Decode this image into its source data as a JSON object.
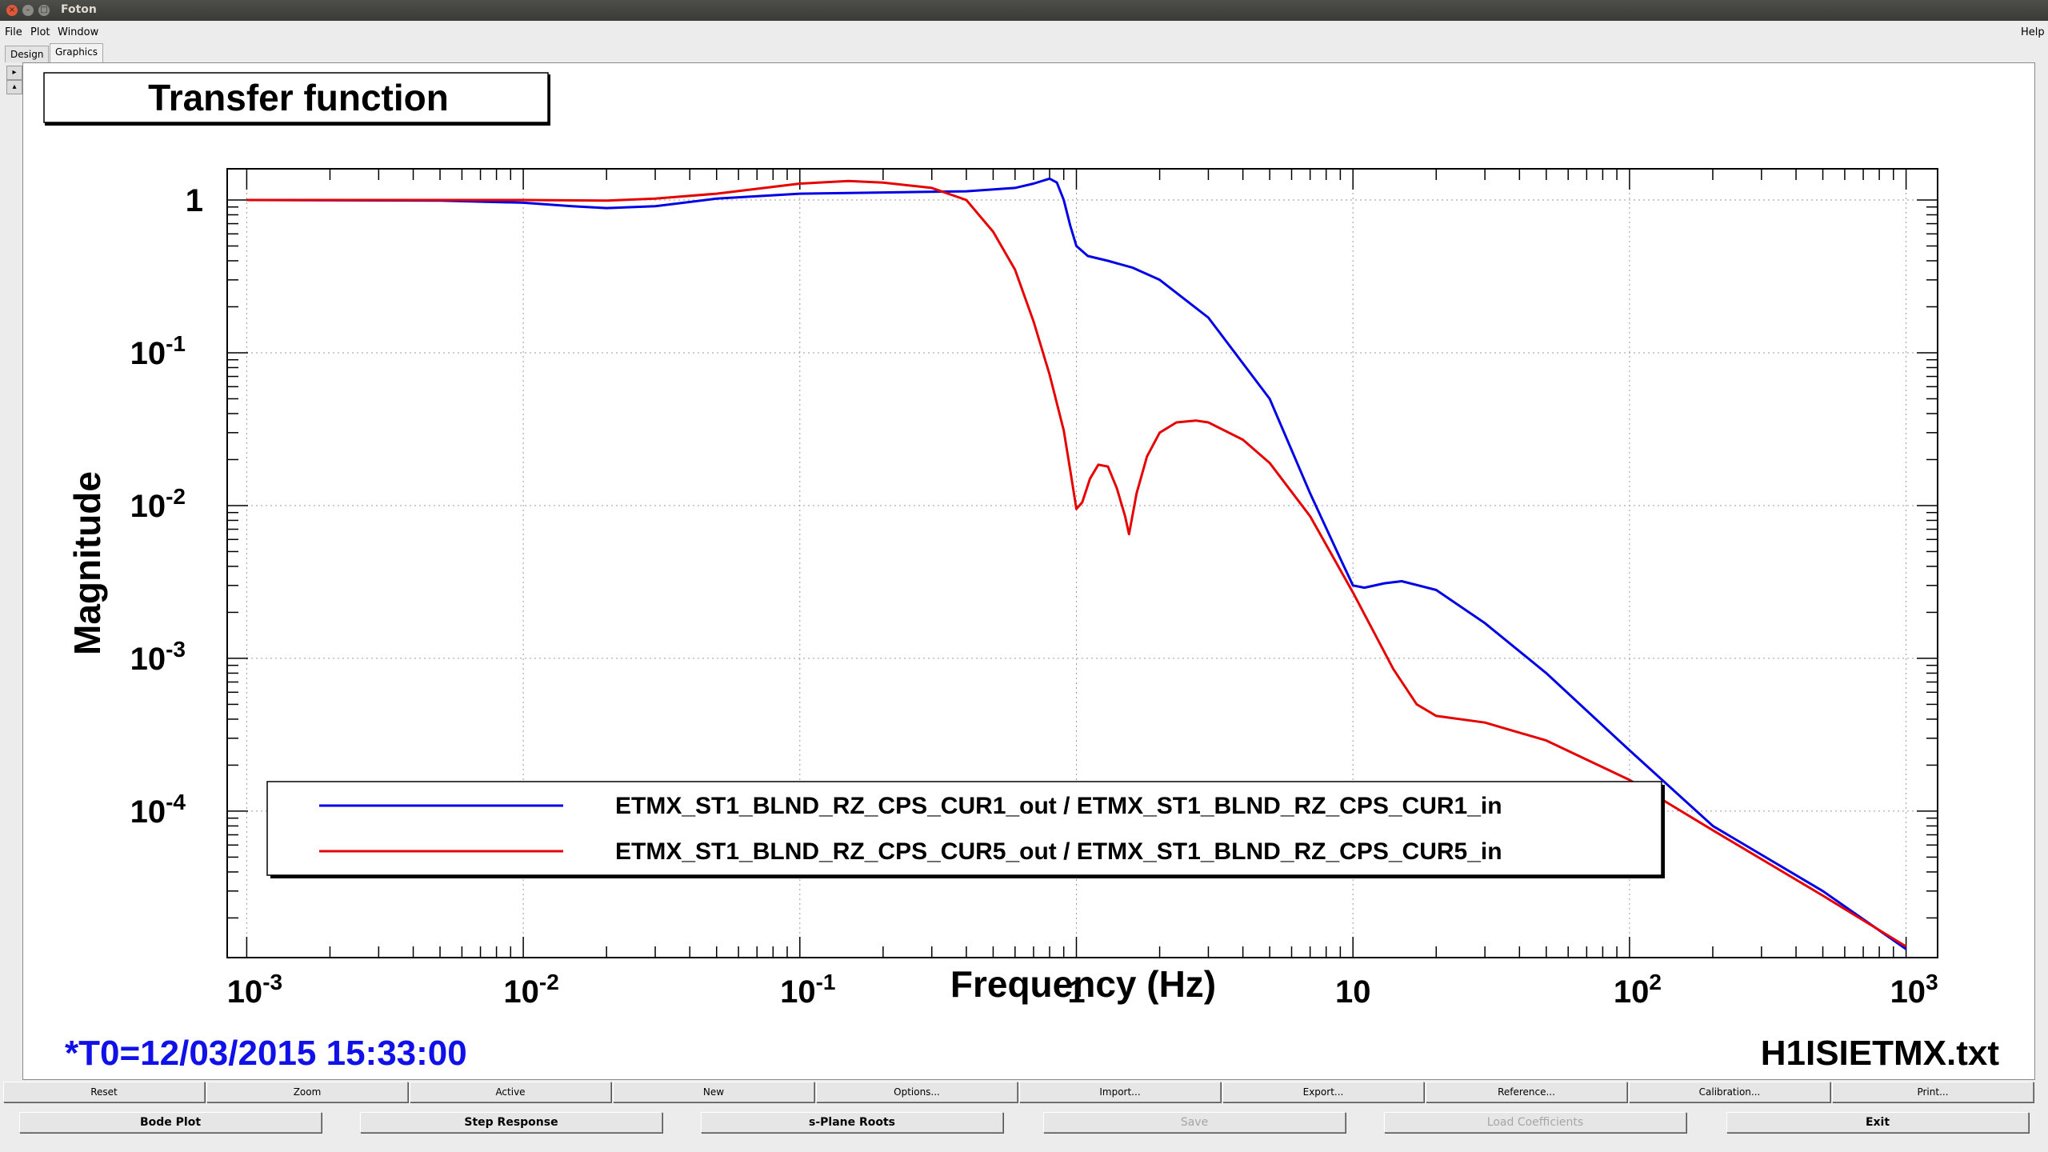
{
  "window": {
    "title": "Foton"
  },
  "menu": {
    "file": "File",
    "plot": "Plot",
    "window": "Window",
    "help": "Help"
  },
  "tabs": {
    "design": "Design",
    "graphics": "Graphics"
  },
  "plot": {
    "title": "Transfer function",
    "ylabel": "Magnitude",
    "xlabel": "Frequency (Hz)",
    "t0": "*T0=12/03/2015 15:33:00",
    "file": "H1ISIETMX.txt",
    "xticks": [
      {
        "value": 0.001,
        "base": "10",
        "exp": "-3"
      },
      {
        "value": 0.01,
        "base": "10",
        "exp": "-2"
      },
      {
        "value": 0.1,
        "base": "10",
        "exp": "-1"
      },
      {
        "value": 1,
        "base": "1",
        "exp": ""
      },
      {
        "value": 10,
        "base": "10",
        "exp": ""
      },
      {
        "value": 100,
        "base": "10",
        "exp": "2"
      },
      {
        "value": 1000,
        "base": "10",
        "exp": "3"
      }
    ],
    "yticks": [
      {
        "value": 1,
        "base": "1",
        "exp": ""
      },
      {
        "value": 0.1,
        "base": "10",
        "exp": "-1"
      },
      {
        "value": 0.01,
        "base": "10",
        "exp": "-2"
      },
      {
        "value": 0.001,
        "base": "10",
        "exp": "-3"
      },
      {
        "value": 0.0001,
        "base": "10",
        "exp": "-4"
      }
    ],
    "colors": {
      "blue": "#0000e6",
      "red": "#e60000",
      "t0": "#1010e8"
    }
  },
  "chart_data": {
    "type": "line",
    "xlabel": "Frequency (Hz)",
    "ylabel": "Magnitude",
    "title": "Transfer function",
    "xscale": "log",
    "yscale": "log",
    "xlim": [
      0.00085,
      1300
    ],
    "ylim": [
      1.1e-05,
      1.6
    ],
    "grid": true,
    "legend": "bottom",
    "series": [
      {
        "name": "ETMX_ST1_BLND_RZ_CPS_CUR1_out / ETMX_ST1_BLND_RZ_CPS_CUR1_in",
        "color": "#0000e6",
        "x": [
          0.001,
          0.005,
          0.01,
          0.015,
          0.02,
          0.03,
          0.05,
          0.1,
          0.2,
          0.4,
          0.6,
          0.7,
          0.8,
          0.85,
          0.9,
          0.95,
          1.0,
          1.1,
          1.3,
          1.6,
          2,
          3,
          5,
          7,
          9,
          10,
          11,
          13,
          15,
          20,
          30,
          50,
          100,
          200,
          500,
          1000
        ],
        "y": [
          1.0,
          0.99,
          0.96,
          0.91,
          0.885,
          0.91,
          1.02,
          1.1,
          1.12,
          1.14,
          1.2,
          1.28,
          1.38,
          1.3,
          1.0,
          0.68,
          0.5,
          0.43,
          0.4,
          0.36,
          0.3,
          0.17,
          0.05,
          0.012,
          0.0045,
          0.003,
          0.0029,
          0.0031,
          0.0032,
          0.0028,
          0.0017,
          0.0008,
          0.00025,
          8e-05,
          3e-05,
          1.25e-05
        ]
      },
      {
        "name": "ETMX_ST1_BLND_RZ_CPS_CUR5_out / ETMX_ST1_BLND_RZ_CPS_CUR5_in",
        "color": "#e60000",
        "x": [
          0.001,
          0.005,
          0.01,
          0.02,
          0.03,
          0.05,
          0.1,
          0.15,
          0.2,
          0.3,
          0.4,
          0.5,
          0.6,
          0.7,
          0.8,
          0.9,
          0.95,
          1.0,
          1.05,
          1.12,
          1.2,
          1.3,
          1.4,
          1.5,
          1.55,
          1.65,
          1.8,
          2.0,
          2.3,
          2.7,
          3,
          4,
          5,
          7,
          10,
          14,
          17,
          20,
          30,
          50,
          100,
          200,
          500,
          1000
        ],
        "y": [
          1.0,
          1.0,
          1.0,
          0.99,
          1.02,
          1.1,
          1.28,
          1.33,
          1.3,
          1.2,
          1.0,
          0.62,
          0.35,
          0.16,
          0.072,
          0.031,
          0.017,
          0.0095,
          0.0105,
          0.015,
          0.0185,
          0.018,
          0.013,
          0.0085,
          0.0065,
          0.012,
          0.021,
          0.03,
          0.035,
          0.036,
          0.035,
          0.027,
          0.019,
          0.0085,
          0.0027,
          0.00085,
          0.0005,
          0.00042,
          0.00038,
          0.00029,
          0.00016,
          7.5e-05,
          2.8e-05,
          1.3e-05
        ]
      }
    ]
  },
  "toolbar": {
    "reset": "Reset",
    "zoom": "Zoom",
    "active": "Active",
    "new": "New",
    "options": "Options...",
    "import": "Import...",
    "export": "Export...",
    "reference": "Reference...",
    "calibration": "Calibration...",
    "print": "Print..."
  },
  "bottom": {
    "bode": "Bode Plot",
    "step": "Step Response",
    "splane": "s-Plane Roots",
    "save": "Save",
    "load": "Load Coefficients",
    "exit": "Exit"
  }
}
